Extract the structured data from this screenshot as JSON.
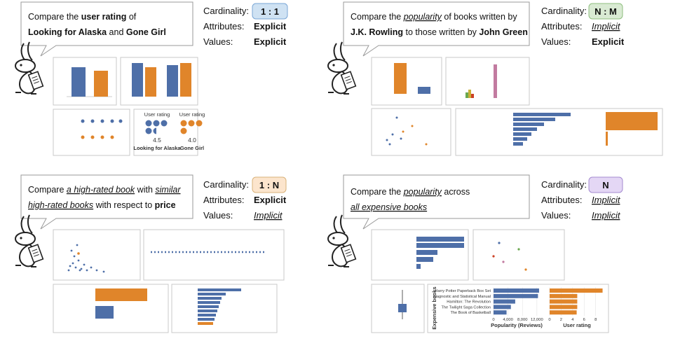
{
  "panels": [
    {
      "prompt": [
        "Compare the ",
        "user rating",
        " of",
        "Looking for Alaska",
        " and ",
        "Gone Girl"
      ],
      "cardinality_label": "Cardinality:",
      "cardinality": "1 : 1",
      "attributes_label": "Attributes:",
      "attributes": "Explicit",
      "values_label": "Values:",
      "values": "Explicit"
    },
    {
      "prompt": [
        "Compare the ",
        "popularity",
        " of books written by",
        "J.K. Rowling",
        " to those written by ",
        "John Green"
      ],
      "cardinality_label": "Cardinality:",
      "cardinality": "N : M",
      "attributes_label": "Attributes:",
      "attributes": "Implicit",
      "values_label": "Values:",
      "values": "Explicit"
    },
    {
      "prompt": [
        "Compare ",
        "a high-rated book",
        " with ",
        "similar",
        "high-rated books",
        " with respect to ",
        "price"
      ],
      "cardinality_label": "Cardinality:",
      "cardinality": "1 : N",
      "attributes_label": "Attributes:",
      "attributes": "Explicit",
      "values_label": "Values:",
      "values": "Implicit"
    },
    {
      "prompt": [
        "Compare the ",
        "popularity",
        " across",
        "all expensive books"
      ],
      "cardinality_label": "Cardinality:",
      "cardinality": "N",
      "attributes_label": "Attributes:",
      "attributes": "Implicit",
      "values_label": "Values:",
      "values": "Implicit"
    }
  ],
  "rating_glyphs": {
    "title": "User rating",
    "books": [
      "Looking for Alaska",
      "Gone Girl"
    ],
    "values": [
      4.5,
      4.0
    ],
    "value_labels": [
      "4.5",
      "4.0"
    ],
    "colors": [
      "#4e6fa8",
      "#e0852a"
    ]
  },
  "expensive_chart": {
    "y_label": "Expensive books",
    "categories": [
      "Harry Potter Paperback Box Set",
      "Diagnostic and Statistical Manual",
      "Hamilton: The Revolution",
      "The Twilight Saga Collection",
      "The Book of Basketball"
    ],
    "popularity": {
      "x_label": "Popularity (Reviews)",
      "color": "#4e6fa8",
      "values": [
        12600,
        12300,
        6000,
        4800,
        3600
      ],
      "xlim": [
        0,
        13000
      ],
      "xticks": [
        0,
        {
          "value": 4000,
          "label": "4,000"
        },
        {
          "value": 8000,
          "label": "8,000"
        },
        {
          "value": 12000,
          "label": "12,000"
        }
      ]
    },
    "rating": {
      "x_label": "User rating",
      "color": "#e0852a",
      "values": [
        9.2,
        4.8,
        4.8,
        4.8,
        4.7
      ],
      "xlim": [
        0,
        9.5
      ],
      "xticks": [
        0,
        2,
        4,
        6,
        8
      ]
    }
  }
}
